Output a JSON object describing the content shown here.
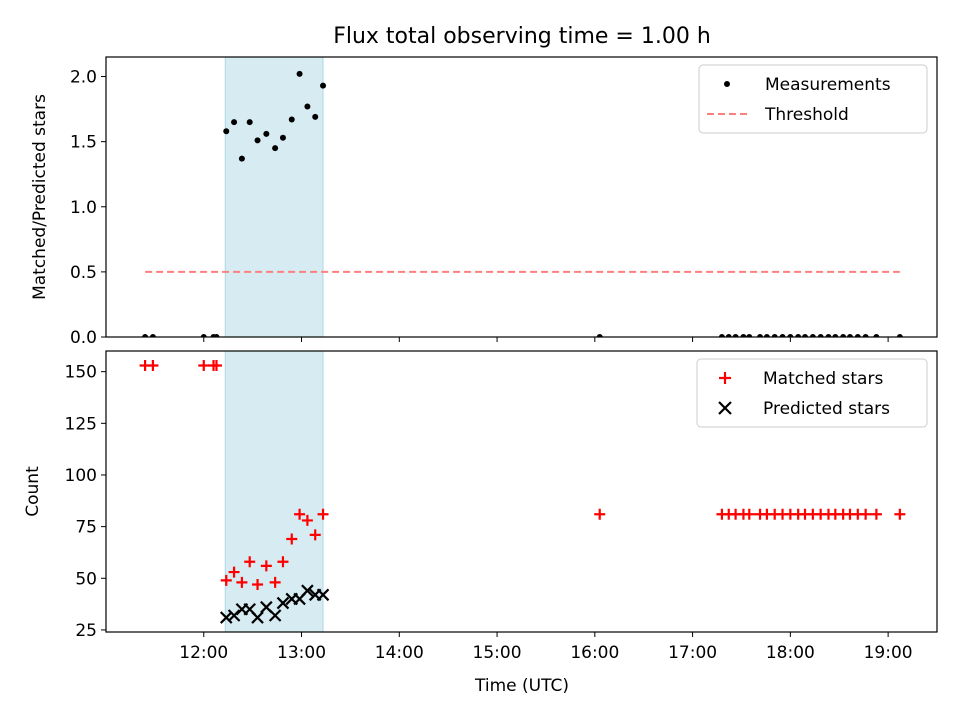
{
  "figure": {
    "title": "Flux total observing time = 1.00 h"
  },
  "chart_data": [
    {
      "type": "scatter",
      "ylabel": "Matched/Predicted stars",
      "xlabel": "",
      "x_unit": "hour of day (UTC)",
      "xlim": [
        11.0,
        19.5
      ],
      "ylim": [
        0,
        2.15
      ],
      "yticks": [
        0.0,
        0.5,
        1.0,
        1.5,
        2.0
      ],
      "ytick_labels": [
        "0.0",
        "0.5",
        "1.0",
        "1.5",
        "2.0"
      ],
      "shaded_span": [
        12.22,
        13.22
      ],
      "legend_position": "upper right",
      "series": [
        {
          "name": "Measurements",
          "style": "dot",
          "color": "#000000",
          "points": [
            [
              11.4,
              0
            ],
            [
              11.48,
              0
            ],
            [
              12.0,
              0
            ],
            [
              12.1,
              0
            ],
            [
              12.13,
              0
            ],
            [
              12.23,
              1.58
            ],
            [
              12.31,
              1.65
            ],
            [
              12.39,
              1.37
            ],
            [
              12.47,
              1.65
            ],
            [
              12.55,
              1.51
            ],
            [
              12.64,
              1.56
            ],
            [
              12.73,
              1.45
            ],
            [
              12.81,
              1.53
            ],
            [
              12.9,
              1.67
            ],
            [
              12.98,
              2.02
            ],
            [
              13.06,
              1.77
            ],
            [
              13.14,
              1.69
            ],
            [
              13.22,
              1.93
            ],
            [
              16.05,
              0
            ],
            [
              17.3,
              0
            ],
            [
              17.37,
              0
            ],
            [
              17.44,
              0
            ],
            [
              17.52,
              0
            ],
            [
              17.58,
              0
            ],
            [
              17.69,
              0
            ],
            [
              17.76,
              0
            ],
            [
              17.84,
              0
            ],
            [
              17.92,
              0
            ],
            [
              18.0,
              0
            ],
            [
              18.08,
              0
            ],
            [
              18.15,
              0
            ],
            [
              18.23,
              0
            ],
            [
              18.31,
              0
            ],
            [
              18.39,
              0
            ],
            [
              18.46,
              0
            ],
            [
              18.54,
              0
            ],
            [
              18.61,
              0
            ],
            [
              18.69,
              0
            ],
            [
              18.77,
              0
            ],
            [
              18.88,
              0
            ],
            [
              19.12,
              0
            ]
          ]
        },
        {
          "name": "Threshold",
          "style": "dashed-line",
          "color": "#ff7f7f",
          "points": [
            [
              11.4,
              0.5
            ],
            [
              19.12,
              0.5
            ]
          ]
        }
      ]
    },
    {
      "type": "scatter",
      "ylabel": "Count",
      "xlabel": "Time (UTC)",
      "x_unit": "hour of day (UTC)",
      "xlim": [
        11.0,
        19.5
      ],
      "ylim": [
        24,
        160
      ],
      "yticks": [
        25,
        50,
        75,
        100,
        125,
        150
      ],
      "ytick_labels": [
        "25",
        "50",
        "75",
        "100",
        "125",
        "150"
      ],
      "xticks": [
        12,
        13,
        14,
        15,
        16,
        17,
        18,
        19
      ],
      "xtick_labels": [
        "12:00",
        "13:00",
        "14:00",
        "15:00",
        "16:00",
        "17:00",
        "18:00",
        "19:00"
      ],
      "shaded_span": [
        12.22,
        13.22
      ],
      "legend_position": "upper right",
      "series": [
        {
          "name": "Matched stars",
          "style": "plus",
          "color": "#ff0000",
          "points": [
            [
              11.4,
              153
            ],
            [
              11.48,
              153
            ],
            [
              12.0,
              153
            ],
            [
              12.1,
              153
            ],
            [
              12.13,
              153
            ],
            [
              12.23,
              49
            ],
            [
              12.31,
              53
            ],
            [
              12.39,
              48
            ],
            [
              12.47,
              58
            ],
            [
              12.55,
              47
            ],
            [
              12.64,
              56
            ],
            [
              12.73,
              48
            ],
            [
              12.81,
              58
            ],
            [
              12.9,
              69
            ],
            [
              12.98,
              81
            ],
            [
              13.06,
              78
            ],
            [
              13.14,
              71
            ],
            [
              13.22,
              81
            ],
            [
              16.05,
              81
            ],
            [
              17.3,
              81
            ],
            [
              17.37,
              81
            ],
            [
              17.44,
              81
            ],
            [
              17.52,
              81
            ],
            [
              17.58,
              81
            ],
            [
              17.69,
              81
            ],
            [
              17.76,
              81
            ],
            [
              17.84,
              81
            ],
            [
              17.92,
              81
            ],
            [
              18.0,
              81
            ],
            [
              18.08,
              81
            ],
            [
              18.15,
              81
            ],
            [
              18.23,
              81
            ],
            [
              18.31,
              81
            ],
            [
              18.39,
              81
            ],
            [
              18.46,
              81
            ],
            [
              18.54,
              81
            ],
            [
              18.61,
              81
            ],
            [
              18.69,
              81
            ],
            [
              18.77,
              81
            ],
            [
              18.88,
              81
            ],
            [
              19.12,
              81
            ]
          ]
        },
        {
          "name": "Predicted stars",
          "style": "x",
          "color": "#000000",
          "points": [
            [
              12.23,
              31
            ],
            [
              12.31,
              32
            ],
            [
              12.39,
              35
            ],
            [
              12.47,
              35
            ],
            [
              12.55,
              31
            ],
            [
              12.64,
              36
            ],
            [
              12.73,
              32
            ],
            [
              12.81,
              38
            ],
            [
              12.9,
              40
            ],
            [
              12.98,
              40
            ],
            [
              13.06,
              44
            ],
            [
              13.14,
              42
            ],
            [
              13.22,
              42
            ]
          ]
        }
      ]
    }
  ]
}
